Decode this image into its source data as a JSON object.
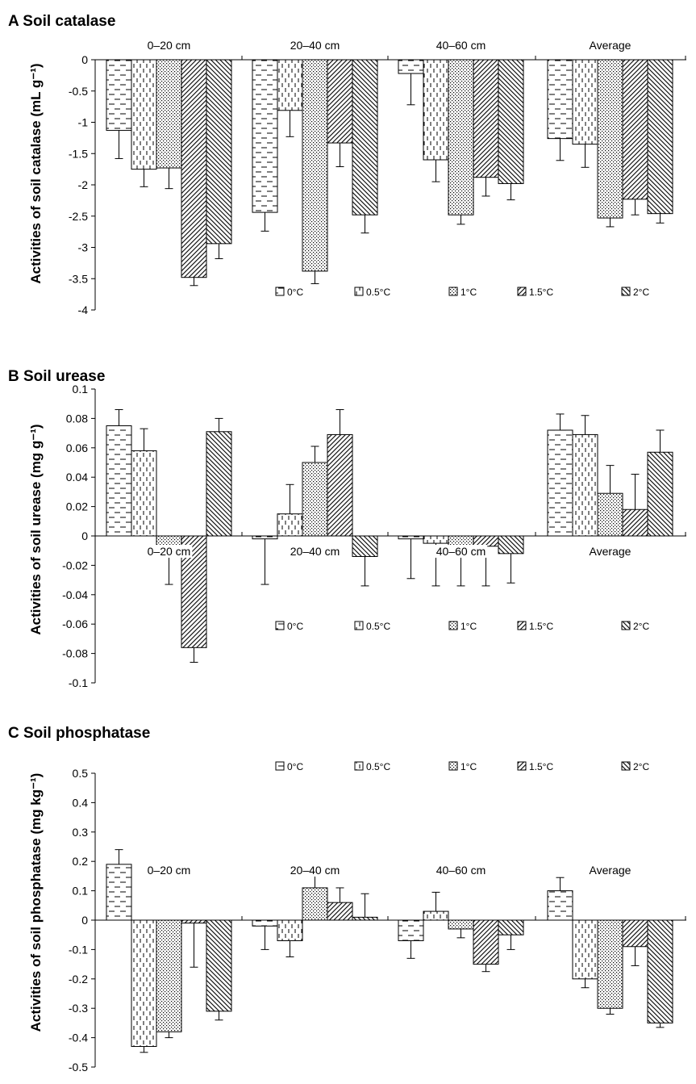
{
  "figure": {
    "panels": [
      {
        "title": "A Soil catalase"
      },
      {
        "title": "B Soil urease"
      },
      {
        "title": "C Soil phosphatase"
      }
    ]
  },
  "colors": {
    "ink": "#000000",
    "background": "#ffffff"
  },
  "chart_data": [
    {
      "type": "bar",
      "title": "A Soil catalase",
      "ylabel": "Activities of soil catalase (mL g⁻¹)",
      "categories": [
        "0–20 cm",
        "20–40 cm",
        "40–60 cm",
        "Average"
      ],
      "series": [
        {
          "name": "0°C",
          "values": [
            -1.13,
            -2.44,
            -0.22,
            -1.26
          ],
          "errors": [
            0.45,
            0.3,
            0.5,
            0.35
          ]
        },
        {
          "name": "0.5°C",
          "values": [
            -1.75,
            -0.81,
            -1.6,
            -1.35
          ],
          "errors": [
            0.28,
            0.42,
            0.35,
            0.37
          ]
        },
        {
          "name": "1°C",
          "values": [
            -1.73,
            -3.38,
            -2.48,
            -2.53
          ],
          "errors": [
            0.33,
            0.2,
            0.15,
            0.14
          ]
        },
        {
          "name": "1.5°C",
          "values": [
            -3.48,
            -1.33,
            -1.88,
            -2.23
          ],
          "errors": [
            0.13,
            0.38,
            0.3,
            0.25
          ]
        },
        {
          "name": "2°C",
          "values": [
            -2.94,
            -2.48,
            -1.98,
            -2.46
          ],
          "errors": [
            0.24,
            0.29,
            0.26,
            0.15
          ]
        }
      ],
      "ylim": [
        -4,
        0
      ],
      "yticks": [
        0,
        -0.5,
        -1,
        -1.5,
        -2,
        -2.5,
        -3,
        -3.5,
        -4
      ],
      "ytick_labels": [
        "0",
        "-0.5",
        "-1",
        "-1.5",
        "-2",
        "-2.5",
        "-3",
        "-3.5",
        "-4"
      ],
      "legend": {
        "placement": "bottom-right",
        "entries": [
          "0°C",
          "0.5°C",
          "1°C",
          "1.5°C",
          "2°C"
        ]
      },
      "grid": false
    },
    {
      "type": "bar",
      "title": "B Soil urease",
      "ylabel": "Activities of soil urease (mg g⁻¹)",
      "categories": [
        "0–20 cm",
        "20–40 cm",
        "40–60 cm",
        "Average"
      ],
      "series": [
        {
          "name": "0°C",
          "values": [
            0.075,
            -0.002,
            -0.002,
            0.072
          ],
          "errors": [
            0.011,
            0.031,
            0.027,
            0.011
          ]
        },
        {
          "name": "0.5°C",
          "values": [
            0.058,
            0.015,
            -0.005,
            0.069
          ],
          "errors": [
            0.015,
            0.02,
            0.029,
            0.013
          ]
        },
        {
          "name": "1°C",
          "values": [
            -0.008,
            0.05,
            -0.008,
            0.029
          ],
          "errors": [
            0.025,
            0.011,
            0.026,
            0.019
          ]
        },
        {
          "name": "1.5°C",
          "values": [
            -0.076,
            0.069,
            -0.007,
            0.018
          ],
          "errors": [
            0.01,
            0.017,
            0.027,
            0.024
          ]
        },
        {
          "name": "2°C",
          "values": [
            0.071,
            -0.014,
            -0.012,
            0.057
          ],
          "errors": [
            0.009,
            0.02,
            0.02,
            0.015
          ]
        }
      ],
      "ylim": [
        -0.1,
        0.1
      ],
      "yticks": [
        0.1,
        0.08,
        0.06,
        0.04,
        0.02,
        0,
        -0.02,
        -0.04,
        -0.06,
        -0.08,
        -0.1
      ],
      "ytick_labels": [
        "0.1",
        "0.08",
        "0.06",
        "0.04",
        "0.02",
        "0",
        "-0.02",
        "-0.04",
        "-0.06",
        "-0.08",
        "-0.1"
      ],
      "legend": {
        "placement": "bottom-right",
        "entries": [
          "0°C",
          "0.5°C",
          "1°C",
          "1.5°C",
          "2°C"
        ]
      },
      "grid": false
    },
    {
      "type": "bar",
      "title": "C Soil phosphatase",
      "ylabel": "Activities of soil phosphatase (mg kg⁻¹)",
      "categories": [
        "0–20 cm",
        "20–40 cm",
        "40–60 cm",
        "Average"
      ],
      "series": [
        {
          "name": "0°C",
          "values": [
            0.19,
            -0.02,
            -0.07,
            0.1
          ],
          "errors": [
            0.05,
            0.08,
            0.06,
            0.045
          ]
        },
        {
          "name": "0.5°C",
          "values": [
            -0.43,
            -0.07,
            0.03,
            -0.2
          ],
          "errors": [
            0.02,
            0.055,
            0.065,
            0.03
          ]
        },
        {
          "name": "1°C",
          "values": [
            -0.38,
            0.11,
            -0.03,
            -0.3
          ],
          "errors": [
            0.02,
            0.045,
            0.03,
            0.02
          ]
        },
        {
          "name": "1.5°C",
          "values": [
            -0.01,
            0.06,
            -0.15,
            -0.09
          ],
          "errors": [
            0.15,
            0.05,
            0.025,
            0.065
          ]
        },
        {
          "name": "2°C",
          "values": [
            -0.31,
            0.01,
            -0.05,
            -0.35
          ],
          "errors": [
            0.03,
            0.08,
            0.05,
            0.015
          ]
        }
      ],
      "ylim": [
        -0.5,
        0.5
      ],
      "yticks": [
        0.5,
        0.4,
        0.3,
        0.2,
        0.1,
        0,
        -0.1,
        -0.2,
        -0.3,
        -0.4,
        -0.5
      ],
      "ytick_labels": [
        "0.5",
        "0.4",
        "0.3",
        "0.2",
        "0.1",
        "0",
        "-0.1",
        "-0.2",
        "-0.3",
        "-0.4",
        "-0.5"
      ],
      "legend": {
        "placement": "top-right",
        "entries": [
          "0°C",
          "0.5°C",
          "1°C",
          "1.5°C",
          "2°C"
        ]
      },
      "grid": false
    }
  ]
}
